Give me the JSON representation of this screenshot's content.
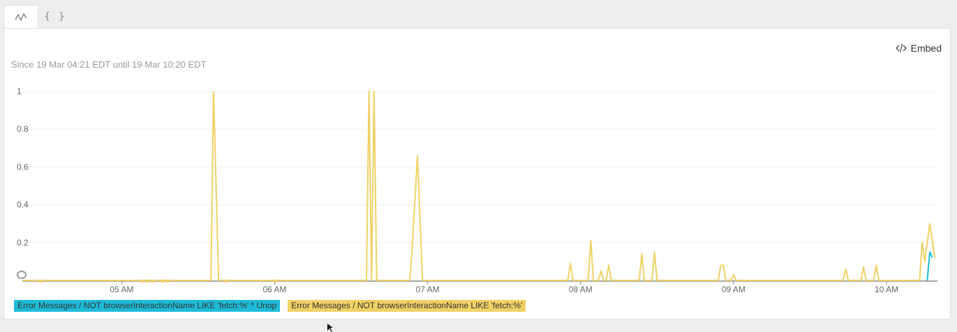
{
  "tabs": [
    {
      "name": "chart-tab",
      "icon": "line-chart-icon",
      "active": true
    },
    {
      "name": "json-tab",
      "label": "{ }",
      "active": false
    }
  ],
  "embed": {
    "label": "Embed",
    "icon": "code-icon"
  },
  "time_range": "Since 19 Mar 04:21 EDT until 19 Mar 10:20 EDT",
  "colors": {
    "cyan": "#1dbbd8",
    "yellow": "#f0d165",
    "axis": "#888888",
    "grid": "#f0f0f0"
  },
  "chart_data": {
    "type": "line",
    "x_unit": "time (EDT, 19 Mar)",
    "xlim": [
      "04:21",
      "10:20"
    ],
    "ylim": [
      0,
      1
    ],
    "y_ticks": [
      "1",
      "0.8",
      "0.6",
      "0.4",
      "0.2"
    ],
    "x_ticks": [
      "05 AM",
      "06 AM",
      "07 AM",
      "08 AM",
      "09 AM",
      "10 AM"
    ],
    "legend": [
      "Error Messages / NOT browserInteractionName LIKE 'fetch:%' * Unop",
      "Error Messages / NOT browserInteractionName LIKE 'fetch:%'"
    ],
    "series": [
      {
        "name": "Error Messages / NOT browserInteractionName LIKE 'fetch:%' * Unop",
        "color": "#1dbbd8",
        "points": [
          [
            "10:16",
            0
          ],
          [
            "10:17",
            0.15
          ],
          [
            "10:18",
            0.12
          ]
        ]
      },
      {
        "name": "Error Messages / NOT browserInteractionName LIKE 'fetch:%'",
        "color": "#f0d165",
        "points": [
          [
            "04:21",
            0
          ],
          [
            "05:35",
            0
          ],
          [
            "05:36",
            1
          ],
          [
            "05:38",
            0
          ],
          [
            "06:36",
            0
          ],
          [
            "06:37",
            1
          ],
          [
            "06:38",
            0
          ],
          [
            "06:39",
            1
          ],
          [
            "06:40",
            0
          ],
          [
            "06:53",
            0
          ],
          [
            "06:54",
            0.18
          ],
          [
            "06:56",
            0.66
          ],
          [
            "06:58",
            0
          ],
          [
            "07:55",
            0
          ],
          [
            "07:56",
            0.09
          ],
          [
            "07:57",
            0
          ],
          [
            "08:03",
            0
          ],
          [
            "08:04",
            0.21
          ],
          [
            "08:05",
            0
          ],
          [
            "08:07",
            0
          ],
          [
            "08:08",
            0.05
          ],
          [
            "08:09",
            0
          ],
          [
            "08:10",
            0
          ],
          [
            "08:11",
            0.08
          ],
          [
            "08:12",
            0
          ],
          [
            "08:23",
            0
          ],
          [
            "08:24",
            0.14
          ],
          [
            "08:25",
            0
          ],
          [
            "08:28",
            0
          ],
          [
            "08:29",
            0.15
          ],
          [
            "08:30",
            0
          ],
          [
            "08:54",
            0
          ],
          [
            "08:55",
            0.08
          ],
          [
            "08:56",
            0.08
          ],
          [
            "08:57",
            0
          ],
          [
            "08:59",
            0
          ],
          [
            "09:00",
            0.03
          ],
          [
            "09:01",
            0
          ],
          [
            "09:43",
            0
          ],
          [
            "09:44",
            0.06
          ],
          [
            "09:45",
            0
          ],
          [
            "09:50",
            0
          ],
          [
            "09:51",
            0.07
          ],
          [
            "09:52",
            0
          ],
          [
            "09:55",
            0
          ],
          [
            "09:56",
            0.08
          ],
          [
            "09:57",
            0
          ],
          [
            "10:13",
            0
          ],
          [
            "10:14",
            0.2
          ],
          [
            "10:15",
            0.1
          ],
          [
            "10:17",
            0.3
          ],
          [
            "10:19",
            0.12
          ]
        ]
      }
    ],
    "null_markers_x": [
      "04:28",
      "05:08",
      "05:10",
      "05:12",
      "05:16",
      "05:18",
      "05:41",
      "06:00"
    ]
  }
}
